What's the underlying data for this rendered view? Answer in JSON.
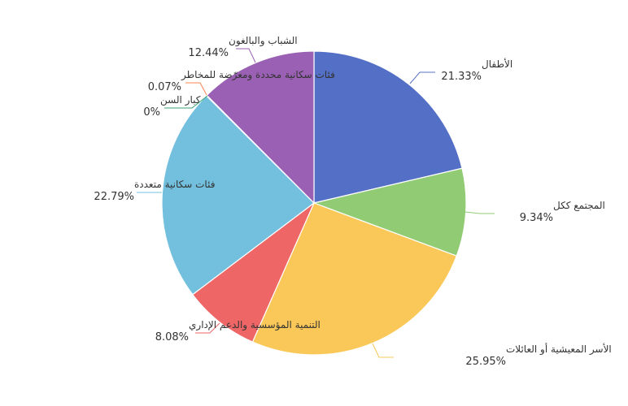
{
  "chart_data": {
    "type": "pie",
    "title": "",
    "slices": [
      {
        "name": "الأطفال",
        "value": 21.33,
        "value_label": "21.33%",
        "color": "#5470c6"
      },
      {
        "name": "المجتمع ككل",
        "value": 9.34,
        "value_label": "9.34%",
        "color": "#91cc75"
      },
      {
        "name": "الأسر المعيشية أو العائلات",
        "value": 25.95,
        "value_label": "25.95%",
        "color": "#fac858"
      },
      {
        "name": "التنمية المؤسسية والدعم الإداري",
        "value": 8.08,
        "value_label": "8.08%",
        "color": "#ee6666"
      },
      {
        "name": "فئات سكانية متعددة",
        "value": 22.79,
        "value_label": "22.79%",
        "color": "#73c0de"
      },
      {
        "name": "كبار السن",
        "value": 0,
        "value_label": "0%",
        "color": "#3ba272"
      },
      {
        "name": "فئات سكانية محددة ومعرّضة للمخاطر",
        "value": 0.07,
        "value_label": "0.07%",
        "color": "#fc8452"
      },
      {
        "name": "الشباب والبالغون",
        "value": 12.44,
        "value_label": "12.44%",
        "color": "#9a60b4"
      }
    ]
  }
}
